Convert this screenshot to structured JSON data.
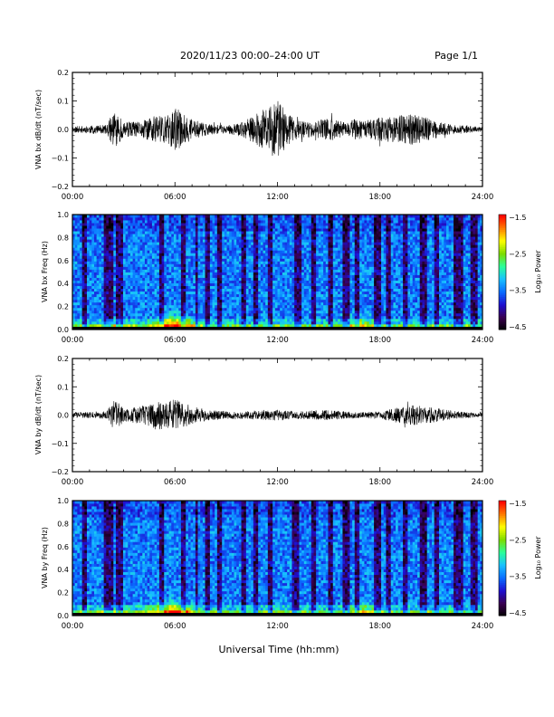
{
  "header": {
    "title": "2020/11/23  00:00–24:00 UT",
    "page": "Page 1/1"
  },
  "xaxis_label": "Universal Time (hh:mm)",
  "time_ticks": [
    "00:00",
    "06:00",
    "12:00",
    "18:00",
    "24:00"
  ],
  "colors": {
    "trace": "#000000",
    "colormap": [
      "#000000",
      "#3a0050",
      "#1f0fd0",
      "#0a6cff",
      "#18c0ff",
      "#2aff9a",
      "#7ddc00",
      "#ffff00",
      "#ff7a00",
      "#ff0000"
    ]
  },
  "chart_data": [
    {
      "type": "line",
      "ylabel": "VNA bx dB/dt (nT/sec)",
      "xlim": [
        0,
        24
      ],
      "ylim": [
        -0.2,
        0.2
      ],
      "yticks": [
        "0.2",
        "0.1",
        "0.0",
        "−0.1",
        "−0.2"
      ],
      "envelope": {
        "t": [
          0,
          1,
          2,
          2.4,
          2.6,
          3,
          4,
          4.5,
          5,
          5.5,
          6,
          6.5,
          7,
          8,
          9,
          10,
          10.5,
          11,
          11.5,
          12,
          12.5,
          13,
          14,
          15,
          16,
          16.5,
          17,
          18,
          19,
          20,
          21,
          22,
          23,
          24
        ],
        "amp": [
          0.012,
          0.015,
          0.018,
          0.07,
          0.06,
          0.03,
          0.03,
          0.05,
          0.07,
          0.05,
          0.09,
          0.06,
          0.04,
          0.02,
          0.015,
          0.03,
          0.05,
          0.07,
          0.09,
          0.12,
          0.07,
          0.04,
          0.03,
          0.045,
          0.03,
          0.04,
          0.035,
          0.045,
          0.055,
          0.06,
          0.04,
          0.02,
          0.015,
          0.01
        ]
      }
    },
    {
      "type": "heatmap",
      "ylabel": "VNA bx Freq (Hz)",
      "xlim": [
        0,
        24
      ],
      "ylim": [
        0,
        1
      ],
      "yticks": [
        "1.0",
        "0.8",
        "0.6",
        "0.4",
        "0.2",
        "0.0"
      ],
      "colorbar": {
        "label": "Log₁₀ Power",
        "min": -4.5,
        "max": -1.5,
        "ticks": [
          "−1.5",
          "−2.5",
          "−3.5",
          "−4.5"
        ]
      },
      "quiet_intervals": [
        [
          0.6,
          0.9
        ],
        [
          1.9,
          2.4
        ],
        [
          2.6,
          2.9
        ],
        [
          5.1,
          5.4
        ],
        [
          6.4,
          6.7
        ],
        [
          7.2,
          7.4
        ],
        [
          7.8,
          8.0
        ],
        [
          8.5,
          8.8
        ],
        [
          9.9,
          10.2
        ],
        [
          10.6,
          10.9
        ],
        [
          11.4,
          11.7
        ],
        [
          13.0,
          13.4
        ],
        [
          14.0,
          14.3
        ],
        [
          15.0,
          15.3
        ],
        [
          15.8,
          16.2
        ],
        [
          16.5,
          16.8
        ],
        [
          17.6,
          18.0
        ],
        [
          18.3,
          18.6
        ],
        [
          19.3,
          19.6
        ],
        [
          20.4,
          20.8
        ],
        [
          21.2,
          21.5
        ],
        [
          22.3,
          22.8
        ],
        [
          23.3,
          23.7
        ]
      ],
      "enhancements": [
        [
          2.5,
          0.1
        ],
        [
          5.3,
          0.15
        ],
        [
          6.0,
          0.2
        ],
        [
          6.6,
          0.12
        ],
        [
          16.8,
          0.18
        ]
      ]
    },
    {
      "type": "line",
      "ylabel": "VNA by dB/dt (nT/sec)",
      "xlim": [
        0,
        24
      ],
      "ylim": [
        -0.2,
        0.2
      ],
      "yticks": [
        "0.2",
        "0.1",
        "0.0",
        "−0.1",
        "−0.2"
      ],
      "envelope": {
        "t": [
          0,
          1,
          2,
          2.5,
          2.7,
          3,
          4,
          4.5,
          5,
          5.5,
          6,
          6.5,
          7,
          8,
          9,
          10,
          11,
          12,
          13,
          14,
          15,
          16,
          17,
          18,
          19,
          20,
          21,
          22,
          23,
          24
        ],
        "amp": [
          0.01,
          0.012,
          0.015,
          0.065,
          0.05,
          0.025,
          0.035,
          0.045,
          0.06,
          0.05,
          0.065,
          0.05,
          0.035,
          0.02,
          0.015,
          0.015,
          0.02,
          0.022,
          0.015,
          0.018,
          0.02,
          0.015,
          0.012,
          0.015,
          0.03,
          0.04,
          0.03,
          0.02,
          0.012,
          0.008
        ]
      }
    },
    {
      "type": "heatmap",
      "ylabel": "VNA by Freq (Hz)",
      "xlim": [
        0,
        24
      ],
      "ylim": [
        0,
        1
      ],
      "yticks": [
        "1.0",
        "0.8",
        "0.6",
        "0.4",
        "0.2",
        "0.0"
      ],
      "colorbar": {
        "label": "Log₁₀ Power",
        "min": -4.5,
        "max": -1.5,
        "ticks": [
          "−1.5",
          "−2.5",
          "−3.5",
          "−4.5"
        ]
      },
      "quiet_intervals": [
        [
          0.6,
          0.9
        ],
        [
          1.9,
          2.4
        ],
        [
          2.6,
          2.9
        ],
        [
          5.1,
          5.4
        ],
        [
          6.4,
          6.7
        ],
        [
          7.2,
          7.4
        ],
        [
          7.8,
          8.0
        ],
        [
          8.5,
          8.8
        ],
        [
          9.9,
          10.2
        ],
        [
          10.6,
          10.9
        ],
        [
          11.4,
          11.7
        ],
        [
          12.9,
          13.2
        ],
        [
          14.0,
          14.3
        ],
        [
          15.0,
          15.3
        ],
        [
          15.8,
          16.2
        ],
        [
          16.5,
          16.8
        ],
        [
          17.6,
          18.0
        ],
        [
          18.3,
          18.6
        ],
        [
          19.3,
          19.6
        ],
        [
          20.4,
          20.8
        ],
        [
          21.2,
          21.5
        ],
        [
          22.3,
          22.8
        ],
        [
          23.3,
          23.7
        ]
      ],
      "enhancements": [
        [
          2.5,
          0.1
        ],
        [
          5.3,
          0.15
        ],
        [
          6.0,
          0.2
        ],
        [
          6.6,
          0.12
        ],
        [
          17.0,
          0.15
        ]
      ]
    }
  ]
}
